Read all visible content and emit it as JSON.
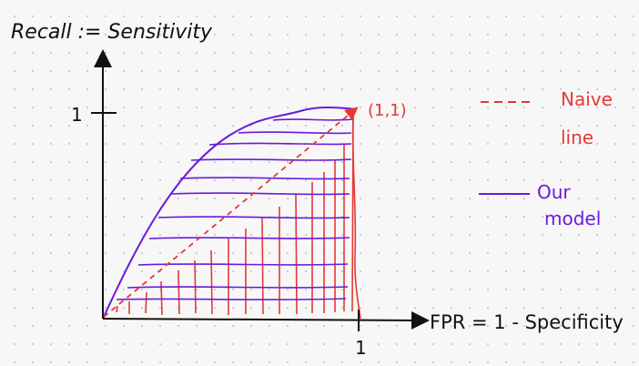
{
  "title": "Recall := Sensitivity",
  "x_axis_label": "FPR = 1 - Specificity",
  "y_tick_label": "1",
  "x_tick_label": "1",
  "point_label": "(1,1)",
  "legend": [
    {
      "label_lines": [
        "Naive",
        "line"
      ],
      "color": "#e53935",
      "style": "dashed"
    },
    {
      "label_lines": [
        "Our",
        "model"
      ],
      "color": "#6a1bdc",
      "style": "solid"
    }
  ],
  "colors": {
    "axis": "#111111",
    "model": "#6a1bdc",
    "naive": "#e53935"
  }
}
